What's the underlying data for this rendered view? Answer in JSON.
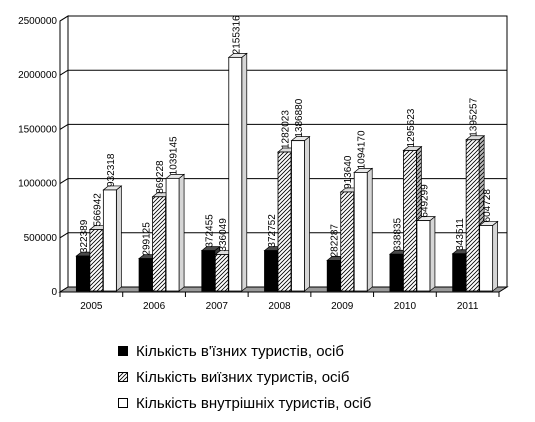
{
  "chart_data": {
    "type": "bar",
    "title": "",
    "xlabel": "",
    "ylabel": "",
    "categories": [
      "2005",
      "2006",
      "2007",
      "2008",
      "2009",
      "2010",
      "2011"
    ],
    "ylim": [
      0,
      2500000
    ],
    "yticks": [
      "0",
      "500000",
      "1000000",
      "1500000",
      "2000000",
      "2500000"
    ],
    "grid": true,
    "legend_position": "bottom",
    "series": [
      {
        "name": "Кількість в'їзних туристів, осіб",
        "values": [
          322389,
          299125,
          372455,
          372752,
          282287,
          338835,
          343511
        ],
        "value_labels": [
          "322389",
          "299125",
          "372455",
          "372752",
          "282287",
          "338835",
          "343511"
        ],
        "fill": "solid-black",
        "color": "#000000"
      },
      {
        "name": "Кількість виїзних туристів, осіб",
        "values": [
          566942,
          869228,
          336049,
          1282023,
          913640,
          1295623,
          1395257
        ],
        "value_labels": [
          "566942",
          "869228",
          "336049",
          "1282023",
          "913640",
          "1295623",
          "1395257"
        ],
        "fill": "diagonal-hatch",
        "color": "#000000"
      },
      {
        "name": "Кількість внутрішніх туристів, осіб",
        "values": [
          932318,
          1039145,
          2155316,
          1386880,
          1094170,
          649299,
          604728
        ],
        "value_labels": [
          "932318",
          "1039145",
          "2155316",
          "1386880",
          "1094170",
          "649299",
          "604728"
        ],
        "fill": "white",
        "color": "#ffffff"
      }
    ]
  }
}
